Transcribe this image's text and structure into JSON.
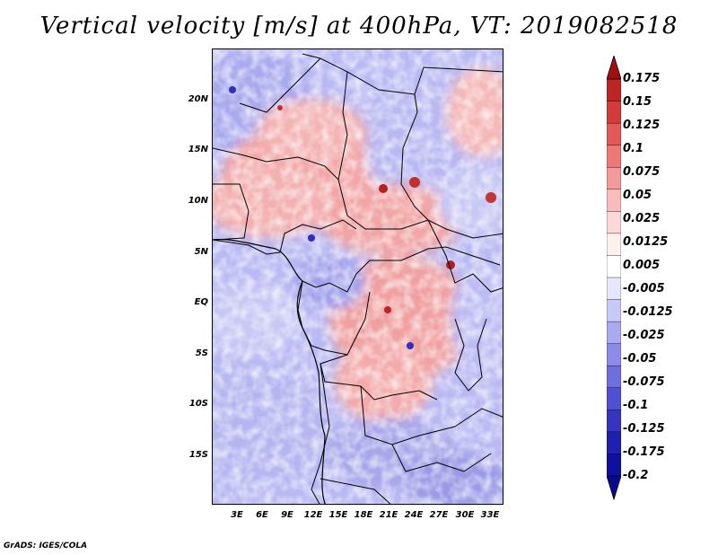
{
  "title": "Vertical velocity [m/s] at 400hPa, VT: 2019082518",
  "credit": "GrADS: IGES/COLA",
  "map": {
    "lat_labels": [
      "20N",
      "15N",
      "10N",
      "5N",
      "EQ",
      "5S",
      "10S",
      "15S"
    ],
    "lon_labels": [
      "3E",
      "6E",
      "9E",
      "12E",
      "15E",
      "18E",
      "21E",
      "24E",
      "27E",
      "30E",
      "33E"
    ],
    "lat_range": [
      -20,
      25
    ],
    "lon_range": [
      0,
      34.5
    ]
  },
  "colorbar": {
    "labels": [
      "0.175",
      "0.15",
      "0.125",
      "0.1",
      "0.075",
      "0.05",
      "0.025",
      "0.0125",
      "0.005",
      "-0.005",
      "-0.0125",
      "-0.025",
      "-0.05",
      "-0.075",
      "-0.1",
      "-0.125",
      "-0.175",
      "-0.2"
    ],
    "colors": [
      "#a01010",
      "#bd2525",
      "#d43b3b",
      "#e35858",
      "#ec7878",
      "#f39a9a",
      "#f8bcbc",
      "#fcd9d9",
      "#fff0f0",
      "#ffffff",
      "#e6e6ff",
      "#c8c8fa",
      "#aaaaf2",
      "#8c8ce8",
      "#6e6ede",
      "#5050d2",
      "#3535c2",
      "#2020b0",
      "#1010a0",
      "#080890"
    ]
  }
}
